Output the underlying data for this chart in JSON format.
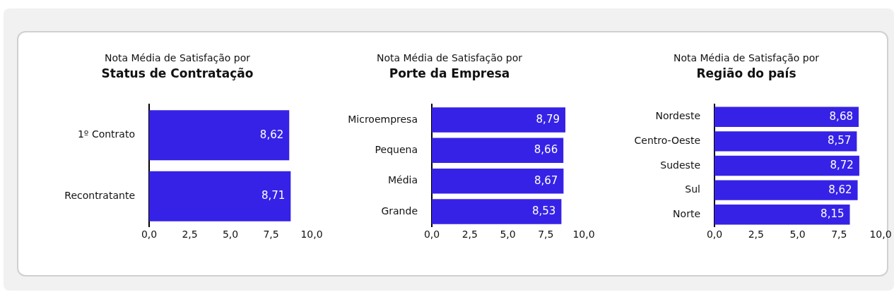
{
  "chart_data": [
    {
      "type": "bar",
      "orientation": "horizontal",
      "subtitle": "Nota Média de Satisfação por",
      "title": "Status de Contratação",
      "categories": [
        "1º Contrato",
        "Recontratante"
      ],
      "values": [
        8.62,
        8.71
      ],
      "value_labels": [
        "8,62",
        "8,71"
      ],
      "color": "#3622e6",
      "xlim": [
        0,
        10
      ],
      "xticks": [
        {
          "value": 0,
          "label": "0,0"
        },
        {
          "value": 2.5,
          "label": "2,5"
        },
        {
          "value": 5,
          "label": "5,0"
        },
        {
          "value": 7.5,
          "label": "7,5"
        },
        {
          "value": 10,
          "label": "10,0"
        }
      ],
      "grid": false,
      "legend": false
    },
    {
      "type": "bar",
      "orientation": "horizontal",
      "subtitle": "Nota Média de Satisfação por",
      "title": "Porte da Empresa",
      "categories": [
        "Microempresa",
        "Pequena",
        "Média",
        "Grande"
      ],
      "values": [
        8.79,
        8.66,
        8.67,
        8.53
      ],
      "value_labels": [
        "8,79",
        "8,66",
        "8,67",
        "8,53"
      ],
      "color": "#3622e6",
      "xlim": [
        0,
        10
      ],
      "xticks": [
        {
          "value": 0,
          "label": "0,0"
        },
        {
          "value": 2.5,
          "label": "2,5"
        },
        {
          "value": 5,
          "label": "5,0"
        },
        {
          "value": 7.5,
          "label": "7,5"
        },
        {
          "value": 10,
          "label": "10,0"
        }
      ],
      "grid": false,
      "legend": false
    },
    {
      "type": "bar",
      "orientation": "horizontal",
      "subtitle": "Nota Média de Satisfação por",
      "title": "Região do país",
      "categories": [
        "Nordeste",
        "Centro-Oeste",
        "Sudeste",
        "Sul",
        "Norte"
      ],
      "values": [
        8.68,
        8.57,
        8.72,
        8.62,
        8.15
      ],
      "value_labels": [
        "8,68",
        "8,57",
        "8,72",
        "8,62",
        "8,15"
      ],
      "color": "#3622e6",
      "xlim": [
        0,
        10
      ],
      "xticks": [
        {
          "value": 0,
          "label": "0,0"
        },
        {
          "value": 2.5,
          "label": "2,5"
        },
        {
          "value": 5,
          "label": "5,0"
        },
        {
          "value": 7.5,
          "label": "7,5"
        },
        {
          "value": 10,
          "label": "10,0"
        }
      ],
      "grid": false,
      "legend": false
    }
  ]
}
